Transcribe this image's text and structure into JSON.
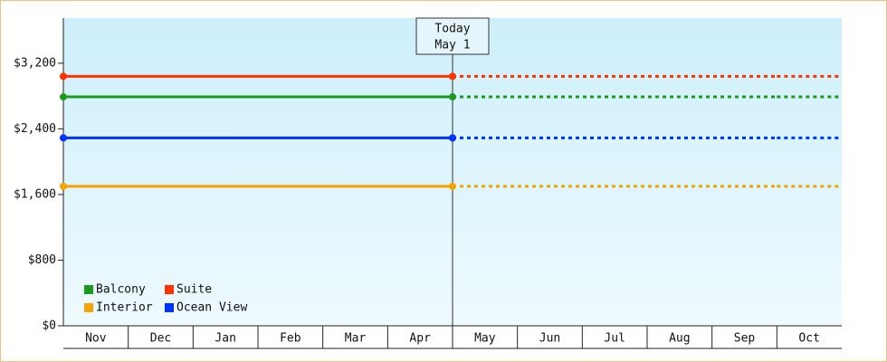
{
  "chart_data": {
    "type": "line",
    "categories": [
      "Nov",
      "Dec",
      "Jan",
      "Feb",
      "Mar",
      "Apr",
      "May",
      "Jun",
      "Jul",
      "Aug",
      "Sep",
      "Oct"
    ],
    "series": [
      {
        "name": "Balcony",
        "color": "#1a9a1a",
        "values": [
          2790,
          2790,
          2790,
          2790,
          2790,
          2790,
          2790,
          2790,
          2790,
          2790,
          2790,
          2790
        ]
      },
      {
        "name": "Suite",
        "color": "#ff3300",
        "values": [
          3040,
          3040,
          3040,
          3040,
          3040,
          3040,
          3040,
          3040,
          3040,
          3040,
          3040,
          3040
        ]
      },
      {
        "name": "Interior",
        "color": "#f5a300",
        "values": [
          1700,
          1700,
          1700,
          1700,
          1700,
          1700,
          1700,
          1700,
          1700,
          1700,
          1700,
          1700
        ]
      },
      {
        "name": "Ocean View",
        "color": "#0033ff",
        "values": [
          2290,
          2290,
          2290,
          2290,
          2290,
          2290,
          2290,
          2290,
          2290,
          2290,
          2290,
          2290
        ]
      }
    ],
    "today": {
      "title": "Today",
      "date": "May 1"
    },
    "ylim": [
      0,
      3750
    ],
    "yticks": [
      {
        "value": 0,
        "label": "$0"
      },
      {
        "value": 800,
        "label": "$800"
      },
      {
        "value": 1600,
        "label": "$1,600"
      },
      {
        "value": 2400,
        "label": "$2,400"
      },
      {
        "value": 3200,
        "label": "$3,200"
      }
    ],
    "legend": "lower-left"
  }
}
